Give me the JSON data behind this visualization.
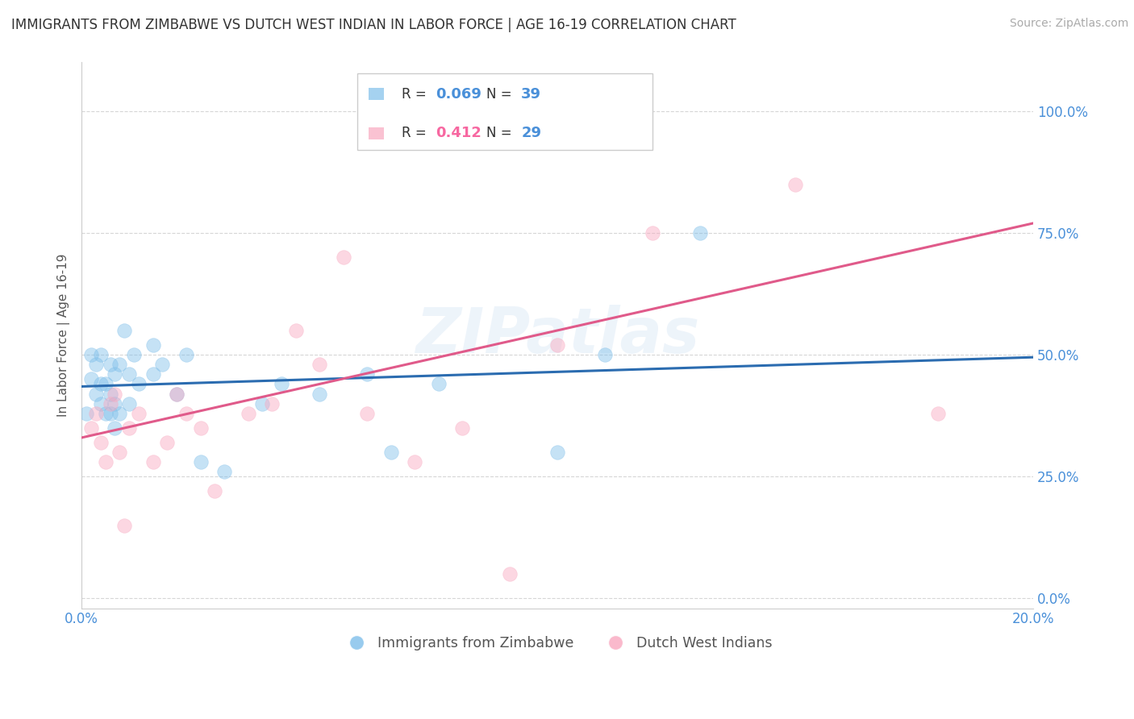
{
  "title": "IMMIGRANTS FROM ZIMBABWE VS DUTCH WEST INDIAN IN LABOR FORCE | AGE 16-19 CORRELATION CHART",
  "source": "Source: ZipAtlas.com",
  "ylabel": "In Labor Force | Age 16-19",
  "legend_label1": "Immigrants from Zimbabwe",
  "legend_label2": "Dutch West Indians",
  "r1": "0.069",
  "n1": "39",
  "r2": "0.412",
  "n2": "29",
  "blue_color": "#7fbfea",
  "pink_color": "#f9a8c0",
  "blue_line_color": "#2b6cb0",
  "pink_line_color": "#e05a8a",
  "background_color": "#ffffff",
  "grid_color": "#cccccc",
  "xlim": [
    0.0,
    0.2
  ],
  "ylim": [
    -0.02,
    1.1
  ],
  "yticks": [
    0.0,
    0.25,
    0.5,
    0.75,
    1.0
  ],
  "ytick_labels": [
    "0.0%",
    "25.0%",
    "50.0%",
    "75.0%",
    "100.0%"
  ],
  "xticks": [
    0.0,
    0.05,
    0.1,
    0.15,
    0.2
  ],
  "xtick_labels": [
    "0.0%",
    "",
    "",
    "",
    "20.0%"
  ],
  "blue_scatter_x": [
    0.001,
    0.002,
    0.002,
    0.003,
    0.003,
    0.004,
    0.004,
    0.004,
    0.005,
    0.005,
    0.006,
    0.006,
    0.006,
    0.007,
    0.007,
    0.007,
    0.008,
    0.008,
    0.009,
    0.01,
    0.01,
    0.011,
    0.012,
    0.015,
    0.015,
    0.017,
    0.02,
    0.022,
    0.025,
    0.03,
    0.038,
    0.042,
    0.05,
    0.06,
    0.065,
    0.075,
    0.1,
    0.11,
    0.13
  ],
  "blue_scatter_y": [
    0.38,
    0.45,
    0.5,
    0.42,
    0.48,
    0.4,
    0.44,
    0.5,
    0.38,
    0.44,
    0.38,
    0.42,
    0.48,
    0.35,
    0.4,
    0.46,
    0.38,
    0.48,
    0.55,
    0.4,
    0.46,
    0.5,
    0.44,
    0.46,
    0.52,
    0.48,
    0.42,
    0.5,
    0.28,
    0.26,
    0.4,
    0.44,
    0.42,
    0.46,
    0.3,
    0.44,
    0.3,
    0.5,
    0.75
  ],
  "pink_scatter_x": [
    0.002,
    0.003,
    0.004,
    0.005,
    0.006,
    0.007,
    0.008,
    0.009,
    0.01,
    0.012,
    0.015,
    0.018,
    0.02,
    0.022,
    0.025,
    0.028,
    0.035,
    0.04,
    0.045,
    0.05,
    0.055,
    0.06,
    0.07,
    0.08,
    0.09,
    0.1,
    0.12,
    0.15,
    0.18
  ],
  "pink_scatter_y": [
    0.35,
    0.38,
    0.32,
    0.28,
    0.4,
    0.42,
    0.3,
    0.15,
    0.35,
    0.38,
    0.28,
    0.32,
    0.42,
    0.38,
    0.35,
    0.22,
    0.38,
    0.4,
    0.55,
    0.48,
    0.7,
    0.38,
    0.28,
    0.35,
    0.05,
    0.52,
    0.75,
    0.85,
    0.38
  ],
  "watermark": "ZIPatlas",
  "blue_trend_x": [
    0.0,
    0.2
  ],
  "blue_trend_y": [
    0.435,
    0.495
  ],
  "pink_trend_x": [
    0.0,
    0.2
  ],
  "pink_trend_y": [
    0.33,
    0.77
  ]
}
